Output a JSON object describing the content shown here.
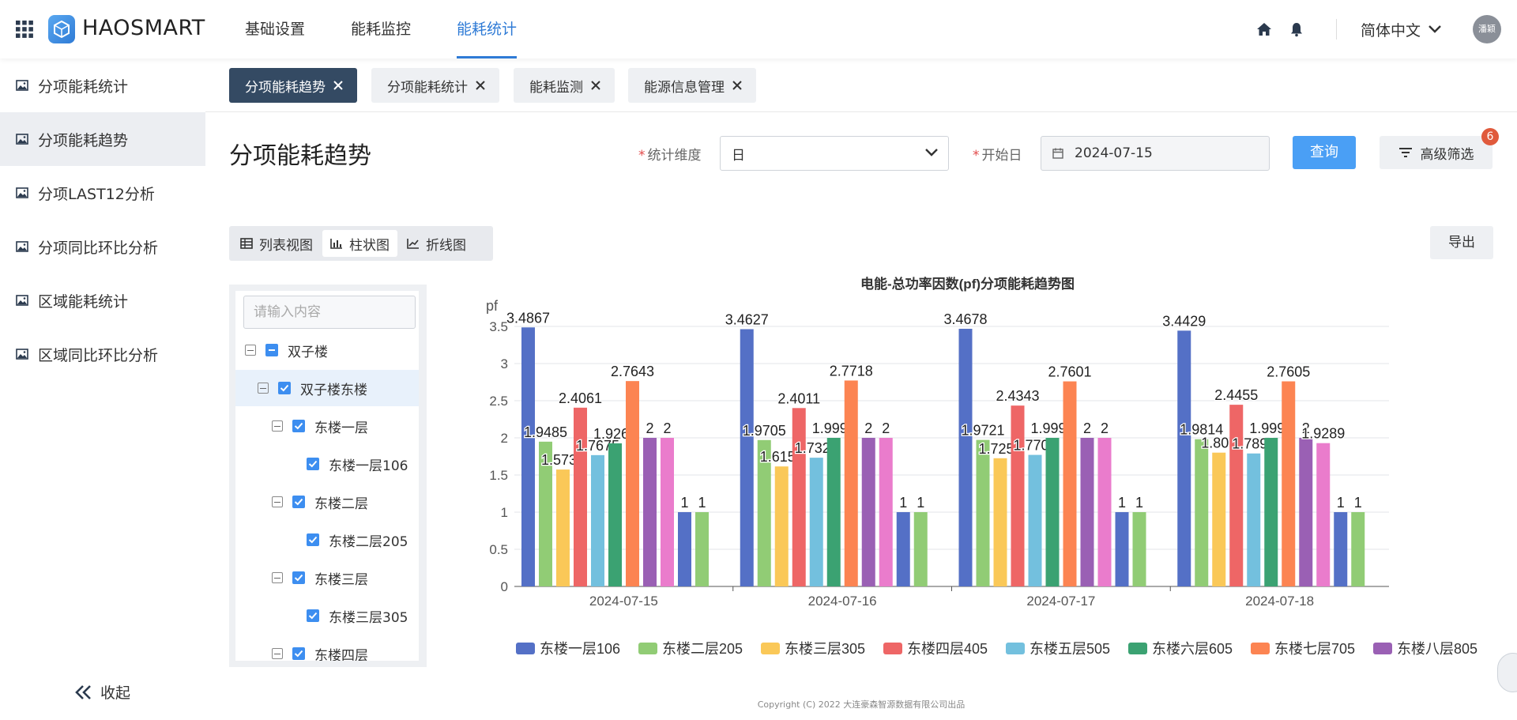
{
  "app": {
    "name": "HAOSMART"
  },
  "nav": {
    "items": [
      "基础设置",
      "能耗监控",
      "能耗统计"
    ],
    "active_index": 2
  },
  "header": {
    "language": "简体中文",
    "user_avatar_text": "潘颖"
  },
  "sidebar": {
    "items": [
      "分项能耗统计",
      "分项能耗趋势",
      "分项LAST12分析",
      "分项同比环比分析",
      "区域能耗统计",
      "区域同比环比分析"
    ],
    "active_index": 1,
    "collapse_label": "收起"
  },
  "tabs": [
    "分项能耗趋势",
    "分项能耗统计",
    "能耗监测",
    "能源信息管理"
  ],
  "page": {
    "title": "分项能耗趋势",
    "dimension_label": "统计维度",
    "dimension_value": "日",
    "start_label": "开始日",
    "start_value": "2024-07-15",
    "query_label": "查询",
    "advanced_label": "高级筛选",
    "advanced_badge": "6",
    "export_label": "导出"
  },
  "views": {
    "items": [
      "列表视图",
      "柱状图",
      "折线图"
    ],
    "active_index": 1
  },
  "tree": {
    "search_placeholder": "请输入内容",
    "nodes": [
      {
        "label": "双子楼",
        "level": 0,
        "check": "half",
        "toggle": true
      },
      {
        "label": "双子楼东楼",
        "level": 1,
        "check": "full",
        "toggle": true,
        "selected": true
      },
      {
        "label": "东楼一层",
        "level": 2,
        "check": "full",
        "toggle": true
      },
      {
        "label": "东楼一层106",
        "level": 3,
        "check": "full",
        "toggle": false
      },
      {
        "label": "东楼二层",
        "level": 2,
        "check": "full",
        "toggle": true
      },
      {
        "label": "东楼二层205",
        "level": 3,
        "check": "full",
        "toggle": false
      },
      {
        "label": "东楼三层",
        "level": 2,
        "check": "full",
        "toggle": true
      },
      {
        "label": "东楼三层305",
        "level": 3,
        "check": "full",
        "toggle": false
      },
      {
        "label": "东楼四层",
        "level": 2,
        "check": "full",
        "toggle": true
      }
    ]
  },
  "chart_data": {
    "type": "bar",
    "title": "电能-总功率因数(pf)分项能耗趋势图",
    "ylabel": "pf",
    "ylim": [
      0,
      3.5
    ],
    "yticks": [
      "0",
      "0.5",
      "1",
      "1.5",
      "2",
      "2.5",
      "3",
      "3.5"
    ],
    "categories": [
      "2024-07-15",
      "2024-07-16",
      "2024-07-17",
      "2024-07-18"
    ],
    "series": [
      {
        "name": "东楼一层106",
        "color": "#5470c6",
        "values": [
          3.4867,
          3.4627,
          3.4678,
          3.4429
        ],
        "labels": [
          "3.4867",
          "3.4627",
          "3.4678",
          "3.4429"
        ]
      },
      {
        "name": "东楼二层205",
        "color": "#91cc75",
        "values": [
          1.9485,
          1.9705,
          1.9721,
          1.9814
        ],
        "labels": [
          "1.9485",
          "1.9705",
          "1.9721",
          "1.9814"
        ]
      },
      {
        "name": "东楼三层305",
        "color": "#fac858",
        "values": [
          1.5735,
          1.6151,
          1.7256,
          1.801
        ],
        "labels": [
          "1.5735",
          "1.6151",
          "1.7256",
          "1.801"
        ]
      },
      {
        "name": "东楼四层405",
        "color": "#ee6666",
        "values": [
          2.4061,
          2.4011,
          2.4343,
          2.4455
        ],
        "labels": [
          "2.4061",
          "2.4011",
          "2.4343",
          "2.4455"
        ]
      },
      {
        "name": "东楼五层505",
        "color": "#73c0de",
        "values": [
          1.7675,
          1.7328,
          1.7705,
          1.7899
        ],
        "labels": [
          "1.7675",
          "1.7328",
          "1.7705",
          "1.7899"
        ]
      },
      {
        "name": "东楼六层605",
        "color": "#3ba272",
        "values": [
          1.9264,
          1.9999,
          1.9999,
          1.9999
        ],
        "labels": [
          "1.9264",
          "1.9999",
          "1.9999",
          "1.9999"
        ]
      },
      {
        "name": "东楼七层705",
        "color": "#fc8452",
        "values": [
          2.7643,
          2.7718,
          2.7601,
          2.7605
        ],
        "labels": [
          "2.7643",
          "2.7718",
          "2.7601",
          "2.7605"
        ]
      },
      {
        "name": "东楼八层805",
        "color": "#9a60b4",
        "values": [
          2,
          2,
          2,
          2
        ],
        "labels": [
          "2",
          "2",
          "2",
          "2"
        ]
      },
      {
        "name": "",
        "color": "#ea7ccc",
        "values": [
          2,
          2,
          2,
          1.9289
        ],
        "labels": [
          "2",
          "2",
          "2",
          "1.9289"
        ]
      },
      {
        "name": "",
        "color": "#5470c6",
        "values": [
          1,
          1,
          1,
          1
        ],
        "labels": [
          "1",
          "1",
          "1",
          "1"
        ]
      },
      {
        "name": "",
        "color": "#91cc75",
        "values": [
          1,
          1,
          1,
          1
        ],
        "labels": [
          "1",
          "1",
          "1",
          "1"
        ]
      }
    ],
    "legend_position": "bottom",
    "grid": true
  },
  "footer": {
    "copyright": "Copyright (C) 2022 大连豪森智源数据有限公司出品"
  }
}
